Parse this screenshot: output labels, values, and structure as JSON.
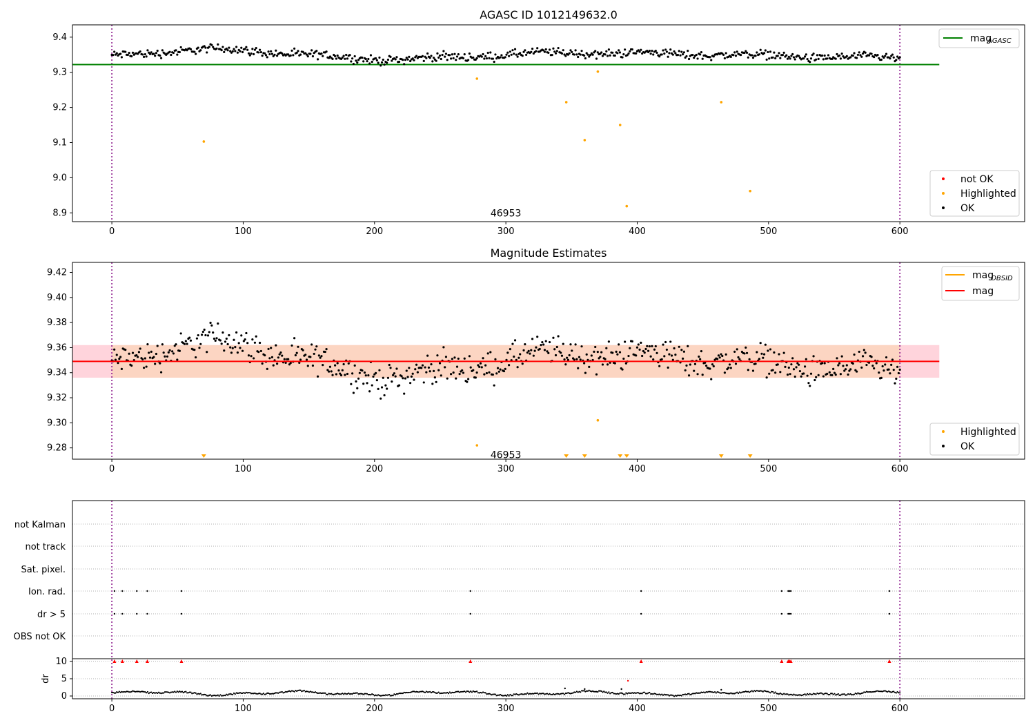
{
  "chart_data": [
    {
      "type": "scatter",
      "title": "AGASC ID 1012149632.0",
      "xlim": [
        -30,
        695
      ],
      "ylim": [
        8.875,
        9.435
      ],
      "x_ticks": [
        0,
        100,
        200,
        300,
        400,
        500,
        600
      ],
      "y_ticks": [
        8.9,
        9.0,
        9.1,
        9.2,
        9.3,
        9.4
      ],
      "y_tick_labels": [
        "8.9",
        "9.0",
        "9.1",
        "9.2",
        "9.3",
        "9.4"
      ],
      "vlines": [
        0,
        600
      ],
      "hline": {
        "y": 9.322,
        "x_range": [
          -30,
          630
        ],
        "color": "#008000"
      },
      "ok_series": {
        "mean": 9.349,
        "color": "#000000"
      },
      "highlighted": {
        "x": [
          70,
          278,
          346,
          360,
          370,
          387,
          392,
          464,
          486
        ],
        "y": [
          9.103,
          9.282,
          9.215,
          9.107,
          9.302,
          9.15,
          8.919,
          9.215,
          8.962
        ],
        "color": "#ffa500"
      },
      "annotation": {
        "text": "46953",
        "x": 300,
        "y": 8.9
      },
      "legend_top": [
        {
          "label": "mag",
          "sub": "AGASC",
          "color": "#008000"
        }
      ],
      "legend_bottom": [
        {
          "label": "not OK",
          "color": "#ff0000"
        },
        {
          "label": "Highlighted",
          "color": "#ffa500"
        },
        {
          "label": "OK",
          "color": "#000000"
        }
      ]
    },
    {
      "type": "scatter",
      "title": "Magnitude Estimates",
      "xlim": [
        -30,
        695
      ],
      "ylim": [
        9.271,
        9.428
      ],
      "x_ticks": [
        0,
        100,
        200,
        300,
        400,
        500,
        600
      ],
      "y_ticks": [
        9.28,
        9.3,
        9.32,
        9.34,
        9.36,
        9.38,
        9.4,
        9.42
      ],
      "y_tick_labels": [
        "9.28",
        "9.30",
        "9.32",
        "9.34",
        "9.36",
        "9.38",
        "9.40",
        "9.42"
      ],
      "vlines": [
        0,
        600
      ],
      "mag_line": {
        "y": 9.349,
        "x_range": [
          -30,
          630
        ],
        "color": "#ff0000"
      },
      "band_outer": {
        "y0": 9.336,
        "y1": 9.362,
        "color": "#ffd4dc"
      },
      "band_inner": {
        "y0": 9.336,
        "y1": 9.362,
        "x_range": [
          0,
          600
        ],
        "color": "#fcd5c2"
      },
      "highlighted": {
        "x": [
          278,
          370
        ],
        "y": [
          9.282,
          9.302
        ],
        "color": "#ffa500"
      },
      "clipped_triangles_x": [
        70,
        346,
        360,
        387,
        392,
        464,
        486
      ],
      "annotation": {
        "text": "46953",
        "x": 300,
        "y": 9.2745
      },
      "legend_top": [
        {
          "label": "mag",
          "sub": "OBSID",
          "color": "#ffa500"
        },
        {
          "label": "mag",
          "color": "#ff0000"
        }
      ],
      "legend_bottom": [
        {
          "label": "Highlighted",
          "color": "#ffa500"
        },
        {
          "label": "OK",
          "color": "#000000"
        }
      ]
    },
    {
      "type": "scatter",
      "xlim": [
        -30,
        695
      ],
      "x_ticks": [
        0,
        100,
        200,
        300,
        400,
        500,
        600
      ],
      "vlines": [
        0,
        600
      ],
      "flag_rows": [
        "not Kalman",
        "not track",
        "Sat. pixel.",
        "Ion. rad.",
        "dr > 5",
        "OBS not OK"
      ],
      "flag_points": {
        "Ion. rad.": [
          2,
          8,
          19,
          27,
          53,
          273,
          403,
          510,
          515,
          516,
          517,
          592
        ],
        "dr > 5": [
          2,
          8,
          19,
          27,
          53,
          273,
          403,
          510,
          515,
          516,
          517,
          592
        ]
      },
      "dr": {
        "ylim": [
          -0.8,
          10.8
        ],
        "y_ticks": [
          0,
          5,
          10
        ],
        "y_tick_labels": [
          "0",
          "5",
          "10"
        ],
        "ylabel": "dr",
        "clipped_x": [
          2,
          8,
          19,
          27,
          53,
          273,
          403,
          510,
          515,
          516,
          517,
          592
        ],
        "outliers": [
          {
            "x": 345,
            "y": 2.2
          },
          {
            "x": 360,
            "y": 2.0
          },
          {
            "x": 388,
            "y": 2.0
          },
          {
            "x": 393,
            "y": 4.4
          },
          {
            "x": 464,
            "y": 1.8
          }
        ]
      }
    }
  ]
}
